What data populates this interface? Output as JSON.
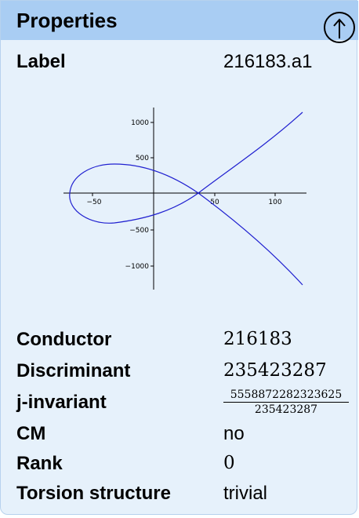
{
  "header": {
    "title": "Properties",
    "up_icon": "up-arrow-circle-icon"
  },
  "label": {
    "name": "Label",
    "value": "216183.a1"
  },
  "plot": {
    "ticks_x": [
      "−50",
      "50",
      "100"
    ],
    "ticks_y": [
      "1000",
      "500",
      "−500",
      "−1000"
    ],
    "curve_color": "#2020d0"
  },
  "properties": [
    {
      "name": "Conductor",
      "value": "216183"
    },
    {
      "name": "Discriminant",
      "value": "235423287"
    },
    {
      "name": "j-invariant",
      "numerator": "5558872282323625",
      "denominator": "235423287"
    },
    {
      "name": "CM",
      "value": "no"
    },
    {
      "name": "Rank",
      "value": "0"
    },
    {
      "name": "Torsion structure",
      "value": "trivial"
    }
  ]
}
